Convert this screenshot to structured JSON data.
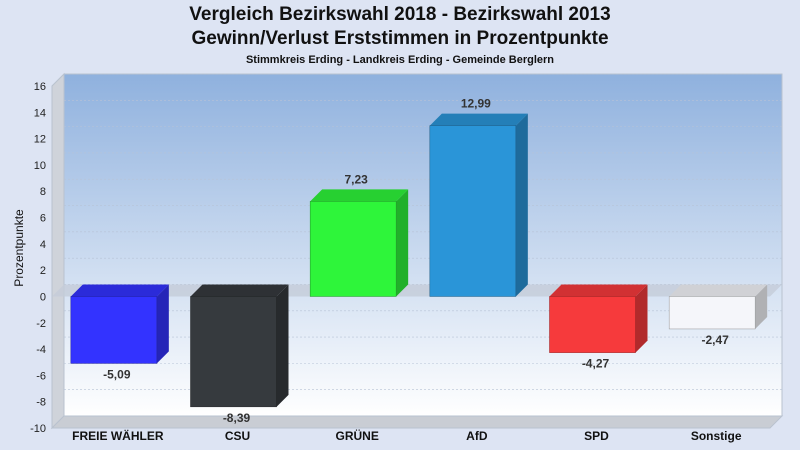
{
  "title": "Vergleich Bezirkswahl 2018 - Bezirkswahl 2013",
  "subtitle": "Gewinn/Verlust Erststimmen in Prozentpunkte",
  "caption": "Stimmkreis Erding - Landkreis Erding - Gemeinde Berglern",
  "chart_data": {
    "type": "bar",
    "title": "Vergleich Bezirkswahl 2018 - Bezirkswahl 2013",
    "subtitle": "Gewinn/Verlust Erststimmen in Prozentpunkte",
    "xlabel": "",
    "ylabel": "Prozentpunkte",
    "ylim": [
      -10,
      16
    ],
    "yticks": [
      16,
      14,
      12,
      10,
      8,
      6,
      4,
      2,
      0,
      -2,
      -4,
      -6,
      -8,
      -10
    ],
    "grid": true,
    "categories": [
      "FREIE WÄHLER",
      "CSU",
      "GRÜNE",
      "AfD",
      "SPD",
      "Sonstige"
    ],
    "values": [
      -5.09,
      -8.39,
      7.23,
      12.99,
      -4.27,
      -2.47
    ],
    "value_labels": [
      "-5,09",
      "-8,39",
      "7,23",
      "12,99",
      "-4,27",
      "-2,47"
    ],
    "colors": [
      "#3333ff",
      "#363a3e",
      "#2ef53a",
      "#2a95d8",
      "#f63a3c",
      "#f5f6fa"
    ]
  }
}
